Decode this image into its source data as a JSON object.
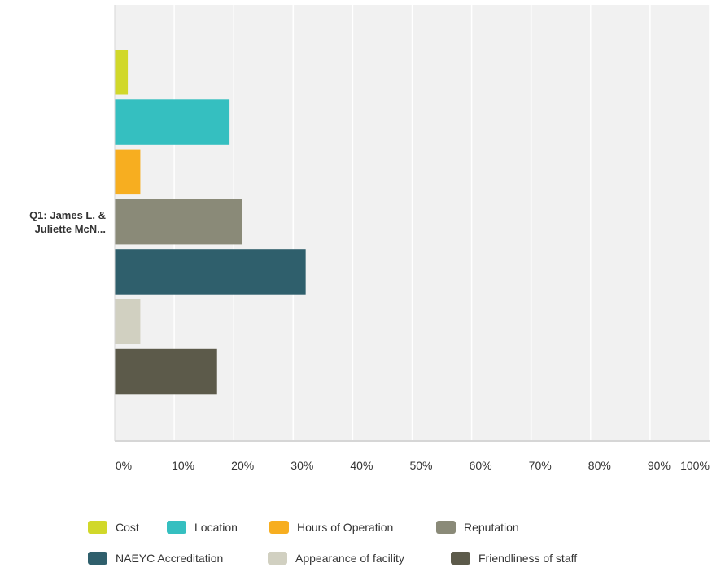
{
  "chart_data": {
    "type": "bar",
    "orientation": "horizontal",
    "categories": [
      "Q1: James L. & Juliette McN..."
    ],
    "category_label_lines": [
      "Q1: James L. &",
      "Juliette McN..."
    ],
    "series": [
      {
        "name": "Cost",
        "values": [
          2.2
        ],
        "color": "#d1d82a"
      },
      {
        "name": "Location",
        "values": [
          19.3
        ],
        "color": "#35bfc0"
      },
      {
        "name": "Hours of Operation",
        "values": [
          4.3
        ],
        "color": "#f7ae20"
      },
      {
        "name": "Reputation",
        "values": [
          21.4
        ],
        "color": "#8a8a78"
      },
      {
        "name": "NAEYC Accreditation",
        "values": [
          32.1
        ],
        "color": "#2f5f6c"
      },
      {
        "name": "Appearance of facility",
        "values": [
          4.3
        ],
        "color": "#d1d0c1"
      },
      {
        "name": "Friendliness of staff",
        "values": [
          17.2
        ],
        "color": "#5c5a4a"
      }
    ],
    "xlim": [
      0,
      100
    ],
    "x_ticks": [
      "0%",
      "10%",
      "20%",
      "30%",
      "40%",
      "50%",
      "60%",
      "70%",
      "80%",
      "90%",
      "100%"
    ],
    "grid": true,
    "legend_position": "bottom",
    "title": "",
    "xlabel": "",
    "ylabel": ""
  }
}
